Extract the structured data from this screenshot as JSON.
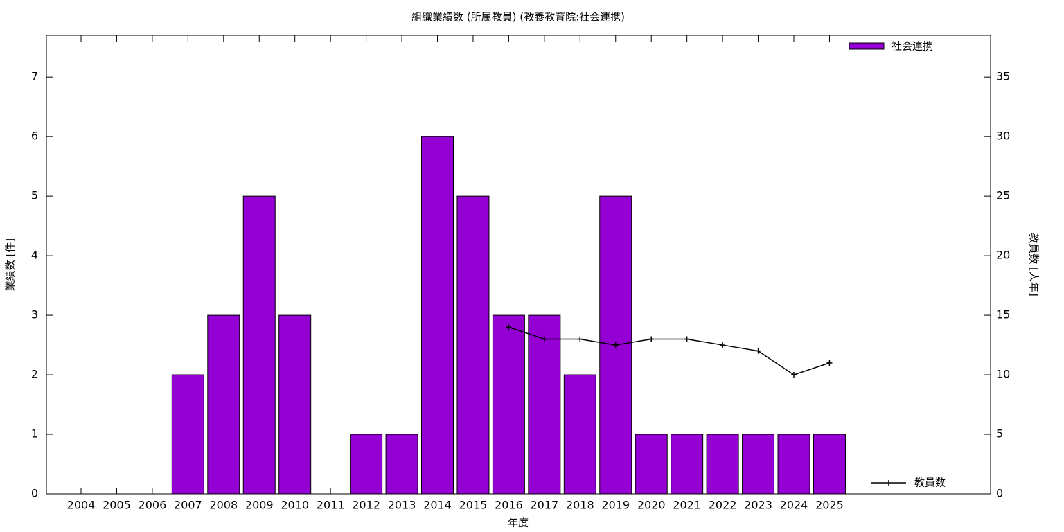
{
  "chart_data": {
    "type": "bar",
    "title": "組織業績数 (所属教員) (教養教育院:社会連携)",
    "x_label": "年度",
    "y_label": "業績数 [件]",
    "y2_label": "教員数 [人年]",
    "categories": [
      "2004",
      "2005",
      "2006",
      "2007",
      "2008",
      "2009",
      "2010",
      "2011",
      "2012",
      "2013",
      "2014",
      "2015",
      "2016",
      "2017",
      "2018",
      "2019",
      "2020",
      "2021",
      "2022",
      "2023",
      "2024",
      "2025"
    ],
    "series": [
      {
        "name": "社会連携",
        "type": "bar",
        "color": "#9400d3",
        "values": [
          0,
          0,
          0,
          2,
          3,
          5,
          3,
          0,
          1,
          1,
          6,
          5,
          3,
          3,
          2,
          5,
          1,
          1,
          1,
          1,
          1,
          1
        ]
      },
      {
        "name": "教員数",
        "type": "line",
        "axis": "y2",
        "color": "#000000",
        "values": [
          null,
          null,
          null,
          null,
          null,
          null,
          null,
          null,
          null,
          null,
          null,
          null,
          14,
          13,
          13,
          12.5,
          13,
          13,
          12.5,
          12,
          10,
          11
        ]
      }
    ],
    "ylim": [
      0,
      7.7
    ],
    "yticks": [
      0,
      1,
      2,
      3,
      4,
      5,
      6,
      7
    ],
    "y2lim": [
      0,
      38.5
    ],
    "y2ticks": [
      0,
      5,
      10,
      15,
      20,
      25,
      30,
      35
    ]
  }
}
